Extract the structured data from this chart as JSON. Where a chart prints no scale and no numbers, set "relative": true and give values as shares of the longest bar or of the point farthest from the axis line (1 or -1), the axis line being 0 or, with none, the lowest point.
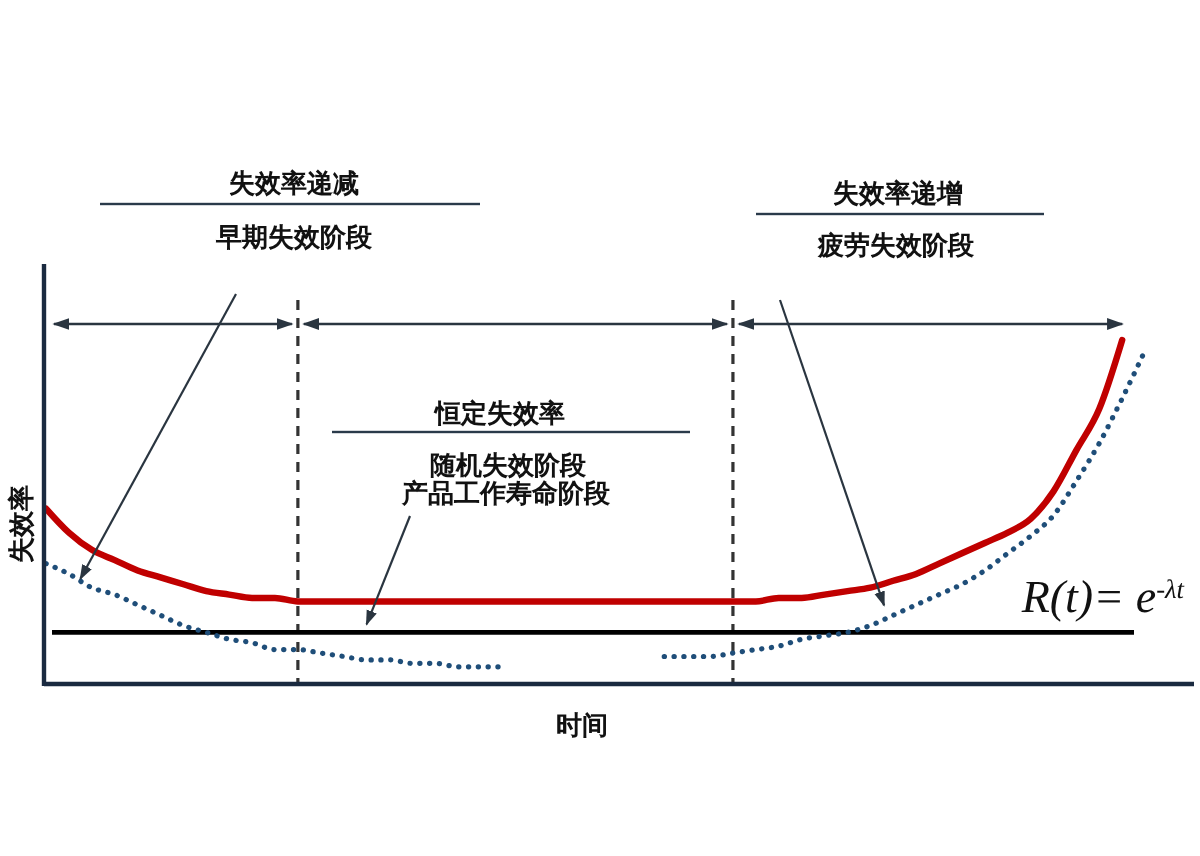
{
  "chart_data": {
    "type": "line",
    "relative": true,
    "xlabel": "时间",
    "ylabel": "失效率",
    "categories": [
      null,
      null,
      null,
      null,
      null,
      null,
      null,
      null,
      null,
      null,
      null,
      null,
      null,
      null,
      null,
      null,
      null,
      null,
      null,
      null,
      null,
      null,
      null,
      null,
      null,
      null,
      null,
      null,
      null,
      null,
      null,
      null,
      null,
      null,
      null,
      null,
      null,
      null,
      null,
      null,
      null,
      null,
      null,
      null,
      null,
      null,
      null,
      null,
      null,
      null
    ],
    "series": [
      {
        "color": "#c00000",
        "line_style": "solid",
        "values": [
          0.51,
          0.44,
          0.39,
          0.36,
          0.33,
          0.31,
          0.29,
          0.27,
          0.26,
          0.25,
          0.25,
          0.24,
          0.24,
          0.24,
          0.24,
          0.24,
          0.24,
          0.24,
          0.24,
          0.24,
          0.24,
          0.24,
          0.24,
          0.24,
          0.24,
          0.24,
          0.24,
          0.24,
          0.24,
          0.24,
          0.24,
          0.24,
          0.25,
          0.25,
          0.26,
          0.27,
          0.28,
          0.3,
          0.32,
          0.35,
          0.38,
          0.41,
          0.44,
          0.48,
          0.56,
          0.68,
          0.8,
          1.0,
          null,
          null
        ]
      },
      {
        "color": "#1f4e79",
        "line_style": "dotted",
        "values": [
          0.35,
          0.32,
          0.28,
          0.26,
          0.23,
          0.2,
          0.17,
          0.15,
          0.13,
          0.12,
          0.1,
          0.1,
          0.09,
          0.08,
          0.07,
          0.07,
          0.06,
          0.06,
          0.05,
          0.05,
          0.05,
          null,
          null,
          null,
          null,
          null,
          null,
          0.08,
          0.08,
          0.08,
          0.09,
          0.1,
          0.11,
          0.13,
          0.14,
          0.15,
          0.17,
          0.2,
          0.23,
          0.26,
          0.29,
          0.33,
          0.38,
          0.43,
          0.49,
          0.59,
          0.7,
          0.83,
          0.97,
          null
        ]
      }
    ],
    "ref_lines": [
      {
        "axis": "y",
        "value": 0.15,
        "label": "R(t)= e$^{-λt}$",
        "color": "#000000"
      }
    ],
    "annotations": [
      "失效率递减",
      "早期失效阶段",
      "恒定失效率",
      "随机失效阶段",
      "产品工作寿命阶段",
      "失效率递增",
      "疲劳失效阶段"
    ]
  }
}
